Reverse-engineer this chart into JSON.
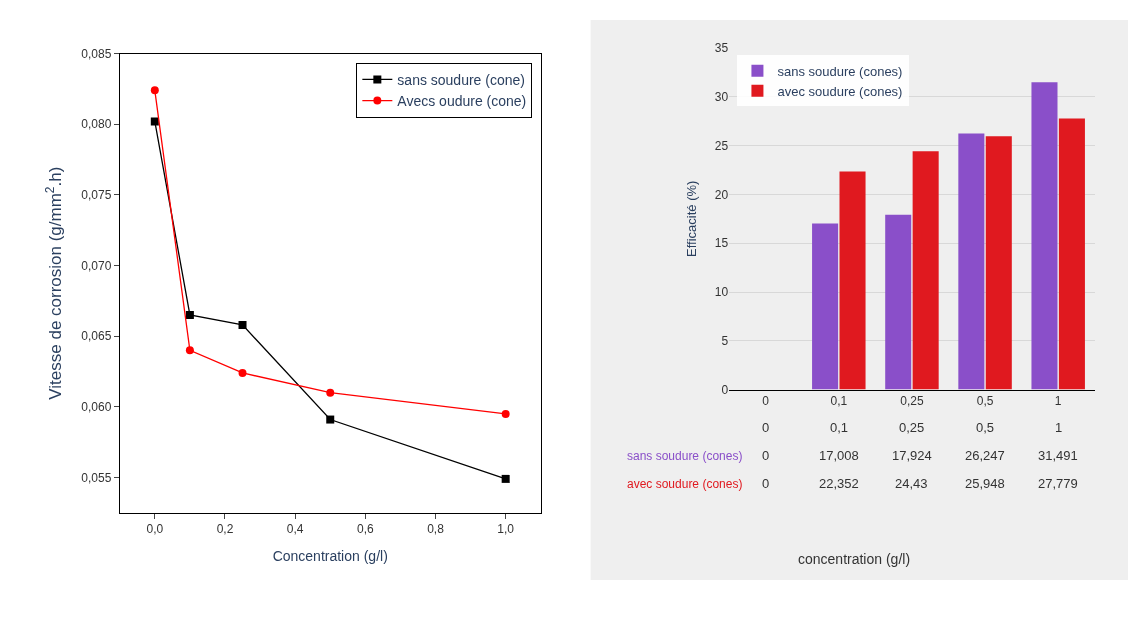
{
  "chart_data": [
    {
      "type": "line",
      "xlabel": "Concentration (g/l)",
      "ylabel": "Vitesse de corrosion (g/mm$^{2}$.h)",
      "xlim": [
        -0.1,
        1.1
      ],
      "ylim": [
        0.0525,
        0.085
      ],
      "xticks": [
        {
          "value": 0,
          "label": "0,0"
        },
        {
          "value": 0.2,
          "label": "0,2"
        },
        {
          "value": 0.4,
          "label": "0,4"
        },
        {
          "value": 0.6,
          "label": "0,6"
        },
        {
          "value": 0.8,
          "label": "0,8"
        },
        {
          "value": 1.0,
          "label": "1,0"
        }
      ],
      "yticks": [
        {
          "value": 0.055,
          "label": "0,055"
        },
        {
          "value": 0.06,
          "label": "0,060"
        },
        {
          "value": 0.065,
          "label": "0,065"
        },
        {
          "value": 0.07,
          "label": "0,070"
        },
        {
          "value": 0.075,
          "label": "0,075"
        },
        {
          "value": 0.08,
          "label": "0,080"
        },
        {
          "value": 0.085,
          "label": "0,085"
        }
      ],
      "x": [
        0,
        0.1,
        0.25,
        0.5,
        1.0
      ],
      "legend": "top right",
      "grid": false,
      "series": [
        {
          "name": "sans soudure (cone)",
          "color": "#000000",
          "marker": "square",
          "values": [
            0.0802,
            0.0665,
            0.0658,
            0.0591,
            0.0549
          ]
        },
        {
          "name": "Avecs oudure (cone)",
          "color": "#ff0000",
          "marker": "circle",
          "values": [
            0.0824,
            0.064,
            0.0624,
            0.061,
            0.0595
          ]
        }
      ]
    },
    {
      "type": "bar",
      "ylabel": "Efficacité (%)",
      "xlabel": "concentration (g/l)",
      "categories": [
        "0",
        "0,1",
        "0,25",
        "0,5",
        "1"
      ],
      "ylim": [
        0,
        35
      ],
      "yticks": [
        0,
        5,
        10,
        15,
        20,
        25,
        30,
        35
      ],
      "grid": "y",
      "legend": "top left",
      "series": [
        {
          "name": "sans soudure (cones)",
          "color": "#8a4fc9",
          "values": [
            0,
            17.008,
            17.924,
            26.247,
            31.491
          ],
          "value_labels": [
            "0",
            "17,008",
            "17,924",
            "26,247",
            "31,491"
          ]
        },
        {
          "name": "avec soudure (cones)",
          "color": "#e0191f",
          "values": [
            0,
            22.352,
            24.43,
            25.948,
            27.779
          ],
          "value_labels": [
            "0",
            "22,352",
            "24,43",
            "25,948",
            "27,779"
          ]
        }
      ]
    }
  ]
}
